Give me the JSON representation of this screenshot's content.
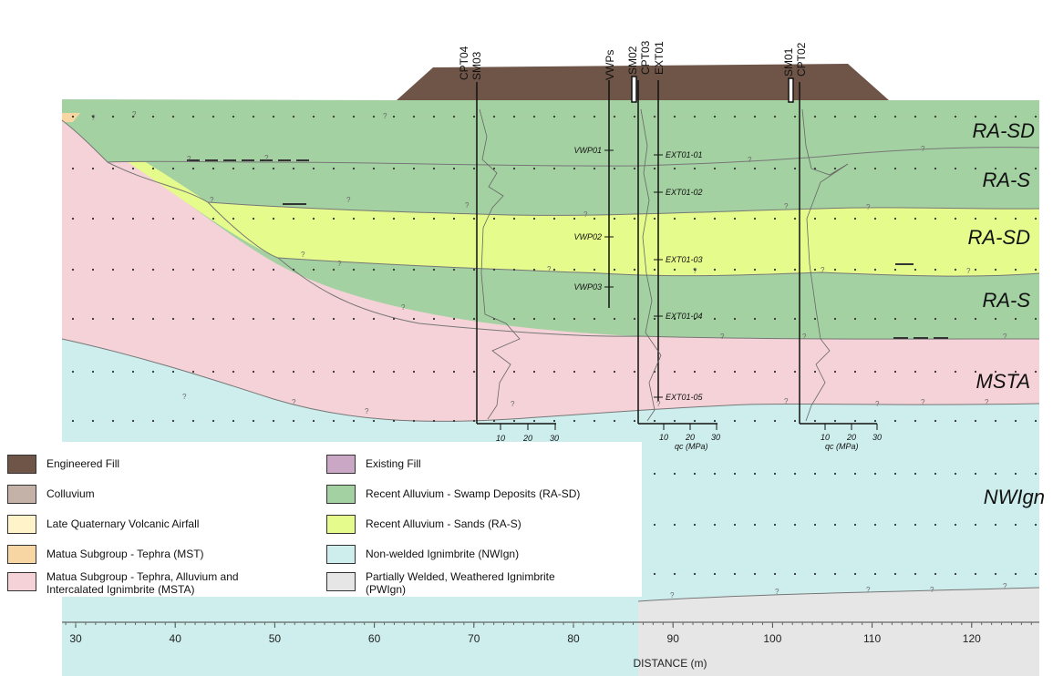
{
  "axis": {
    "title": "DISTANCE (m)",
    "ticks": [
      "30",
      "40",
      "50",
      "60",
      "70",
      "80",
      "90",
      "100",
      "110",
      "120"
    ]
  },
  "units": [
    {
      "label": "RA-SD"
    },
    {
      "label": "RA-S"
    },
    {
      "label": "RA-SD"
    },
    {
      "label": "RA-S"
    },
    {
      "label": "MSTA"
    },
    {
      "label": "NWIgn"
    }
  ],
  "boreholes": {
    "left": {
      "top": "CPT04",
      "bottom": "SM03"
    },
    "vwp": {
      "label": "VWPs"
    },
    "mid": {
      "a": "SM02",
      "b": "CPT03",
      "c": "EXT01"
    },
    "right": {
      "top": "SM01",
      "bottom": "CPT02"
    }
  },
  "instruments": {
    "vwp": [
      "VWP01",
      "VWP02",
      "VWP03"
    ],
    "ext": [
      "EXT01-01",
      "EXT01-02",
      "EXT01-03",
      "EXT01-04",
      "EXT01-05"
    ]
  },
  "cpt_scale": {
    "ticks": [
      "10",
      "20",
      "30"
    ],
    "unit_label": "qc (MPa)"
  },
  "colors": {
    "engineered_fill": "#6e5548",
    "colluvium": "#c4b2a8",
    "late_quaternary": "#fff4c9",
    "mst": "#f7d6a4",
    "msta": "#f5d2d7",
    "existing_fill": "#c9a7c5",
    "ra_sd": "#a4d1a2",
    "ra_s": "#e5fb8b",
    "nwign": "#cdeeed",
    "pwign": "#e6e6e6"
  },
  "legend": {
    "items": [
      {
        "key": "engineered_fill",
        "line1": "Engineered Fill",
        "line2": ""
      },
      {
        "key": "colluvium",
        "line1": "Colluvium",
        "line2": ""
      },
      {
        "key": "late_quaternary",
        "line1": "Late Quaternary Volcanic Airfall",
        "line2": ""
      },
      {
        "key": "mst",
        "line1": "Matua Subgroup - Tephra (MST)",
        "line2": ""
      },
      {
        "key": "msta",
        "line1": "Matua Subgroup - Tephra, Alluvium and",
        "line2": "Intercalated Ignimbrite (MSTA)"
      },
      {
        "key": "existing_fill",
        "line1": "Existing Fill",
        "line2": ""
      },
      {
        "key": "ra_sd",
        "line1": "Recent Alluvium - Swamp Deposits (RA-SD)",
        "line2": ""
      },
      {
        "key": "ra_s",
        "line1": "Recent Alluvium - Sands (RA-S)",
        "line2": ""
      },
      {
        "key": "nwign",
        "line1": "Non-welded Ignimbrite (NWIgn)",
        "line2": ""
      },
      {
        "key": "pwign",
        "line1": "Partially Welded, Weathered Ignimbrite",
        "line2": "(PWIgn)"
      }
    ]
  }
}
